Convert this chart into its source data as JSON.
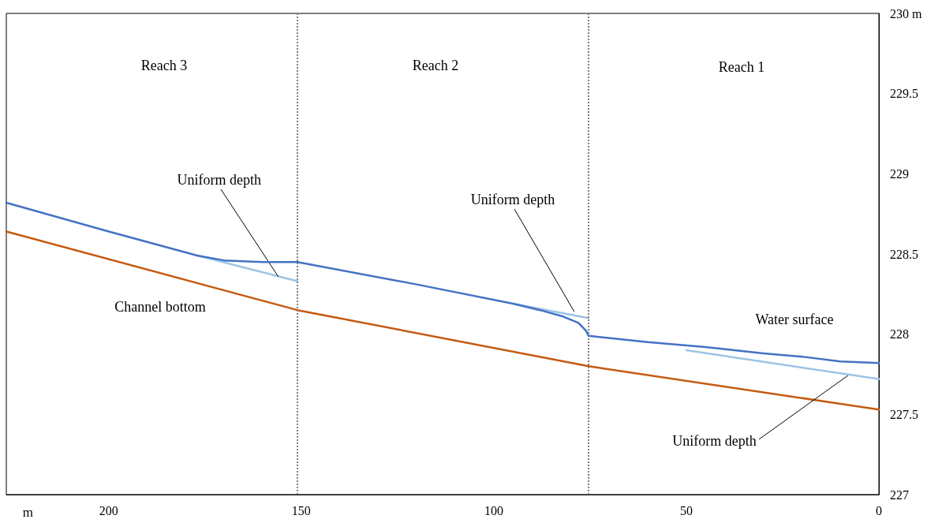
{
  "chart_data": {
    "type": "line",
    "xlabel": "m",
    "xlim": [
      226.6,
      0
    ],
    "xticks": [
      0,
      50,
      100,
      150,
      200
    ],
    "ylim": [
      227,
      230
    ],
    "yticks": [
      227,
      227.5,
      228,
      228.5,
      229,
      229.5,
      {
        "value": 230,
        "label": "230 m"
      }
    ],
    "grid": false,
    "marker": "none",
    "line_style": "solid",
    "series": [
      {
        "color": "#c55a11",
        "x": [
          226.6,
          151,
          75.4,
          0
        ],
        "values": [
          228.64,
          228.15,
          227.8,
          227.53
        ]
      },
      {
        "color": "#9dc3e6",
        "x": [
          177,
          151
        ],
        "values": [
          228.49,
          228.33
        ]
      },
      {
        "color": "#9dc3e6",
        "x": [
          95,
          75.4
        ],
        "values": [
          228.19,
          228.1
        ]
      },
      {
        "color": "#9dc3e6",
        "x": [
          50,
          0
        ],
        "values": [
          227.9,
          227.72
        ]
      },
      {
        "color": "#4472c4",
        "x": [
          226.6,
          200,
          177,
          170,
          160,
          151,
          120,
          95,
          88,
          82,
          78,
          76,
          75.4,
          60,
          45,
          30,
          20,
          10,
          0
        ],
        "values": [
          228.82,
          228.64,
          228.49,
          228.46,
          228.45,
          228.45,
          228.31,
          228.19,
          228.15,
          228.11,
          228.07,
          228.02,
          227.99,
          227.95,
          227.92,
          227.88,
          227.86,
          227.83,
          227.82
        ]
      }
    ],
    "ref_lines": [
      {
        "axis": "x",
        "value": 151,
        "color": "#808080",
        "line_style": "dotted"
      },
      {
        "axis": "x",
        "value": 75.4,
        "color": "#808080",
        "line_style": "dotted"
      }
    ],
    "annotations": [
      "Reach 3",
      "Reach 2",
      "Reach 1",
      "Channel bottom",
      "Water surface",
      {
        "text": "Uniform depth",
        "x": 156,
        "y": 228.36
      },
      {
        "text": "Uniform depth",
        "x": 79.1,
        "y": 228.14
      },
      {
        "text": "Uniform depth",
        "x": 7.6,
        "y": 227.75
      }
    ]
  }
}
